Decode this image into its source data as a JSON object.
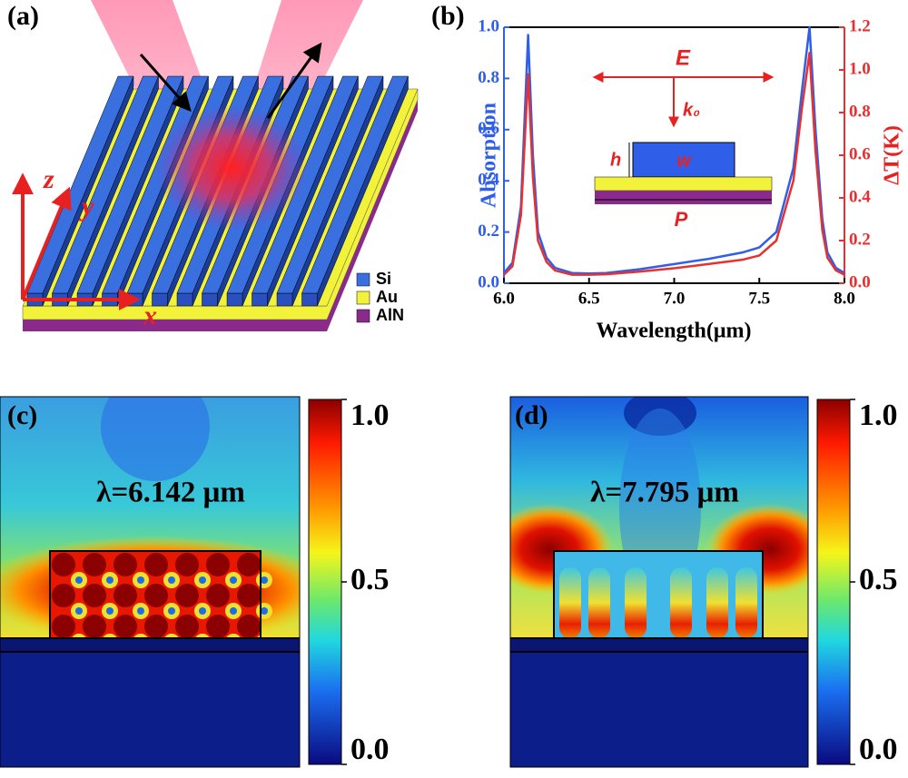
{
  "panel_a": {
    "label": "(a)",
    "axes": [
      "z",
      "y",
      "x"
    ],
    "legend": [
      {
        "name": "Si",
        "color": "#3a6fe0"
      },
      {
        "name": "Au",
        "color": "#f2f23a"
      },
      {
        "name": "AlN",
        "color": "#8a2a8a"
      }
    ]
  },
  "chart_data": {
    "type": "line",
    "label": "(b)",
    "xlabel": "Wavelength(μm)",
    "ylabel": "Absorption",
    "y2label": "ΔT(K)",
    "x": [
      6.0,
      6.05,
      6.1,
      6.142,
      6.17,
      6.2,
      6.25,
      6.3,
      6.4,
      6.5,
      6.6,
      6.8,
      7.0,
      7.2,
      7.4,
      7.5,
      7.6,
      7.7,
      7.75,
      7.795,
      7.83,
      7.87,
      7.9,
      7.95,
      8.0
    ],
    "series": [
      {
        "name": "Absorption",
        "color": "#2f5fe8",
        "axis": "y",
        "values": [
          0.04,
          0.08,
          0.3,
          0.97,
          0.5,
          0.2,
          0.1,
          0.06,
          0.04,
          0.038,
          0.04,
          0.055,
          0.075,
          0.095,
          0.12,
          0.14,
          0.2,
          0.45,
          0.75,
          1.0,
          0.6,
          0.25,
          0.12,
          0.06,
          0.04
        ]
      },
      {
        "name": "ΔT",
        "color": "#e83030",
        "axis": "y2",
        "values": [
          0.04,
          0.08,
          0.32,
          0.98,
          0.5,
          0.2,
          0.1,
          0.06,
          0.04,
          0.04,
          0.042,
          0.055,
          0.07,
          0.09,
          0.11,
          0.13,
          0.2,
          0.48,
          0.82,
          1.08,
          0.62,
          0.25,
          0.12,
          0.06,
          0.04
        ]
      }
    ],
    "xlim": [
      6.0,
      8.0
    ],
    "xticks": [
      {
        "value": 6,
        "label": "6.0"
      },
      {
        "value": 6.5,
        "label": "6.5"
      },
      {
        "value": 7,
        "label": "7.0"
      },
      {
        "value": 7.5,
        "label": "7.5"
      },
      {
        "value": 8,
        "label": "8.0"
      }
    ],
    "ylim": [
      0,
      1.0
    ],
    "yticks": [
      {
        "value": 0,
        "label": "0.0"
      },
      0.2,
      0.4,
      0.6,
      0.8,
      {
        "value": 1,
        "label": "1.0"
      }
    ],
    "y2lim": [
      0,
      1.2
    ],
    "y2ticks": [
      {
        "value": 0,
        "label": "0.0"
      },
      0.2,
      0.4,
      0.6,
      0.8,
      {
        "value": 1,
        "label": "1.0"
      },
      1.2
    ],
    "inset": {
      "E": "E",
      "k": "k₀",
      "h": "h",
      "w": "w",
      "P": "P"
    }
  },
  "panel_c": {
    "label": "(c)",
    "annotation": "λ=6.142 μm",
    "colorbar": {
      "lim": [
        0,
        1
      ],
      "ticks": [
        {
          "value": 1,
          "label": "1.0"
        },
        0.5,
        {
          "value": 0,
          "label": "0.0"
        }
      ]
    }
  },
  "panel_d": {
    "label": "(d)",
    "annotation": "λ=7.795 μm",
    "colorbar": {
      "lim": [
        0,
        1
      ],
      "ticks": [
        {
          "value": 1,
          "label": "1.0"
        },
        0.5,
        {
          "value": 0,
          "label": "0.0"
        }
      ]
    }
  }
}
